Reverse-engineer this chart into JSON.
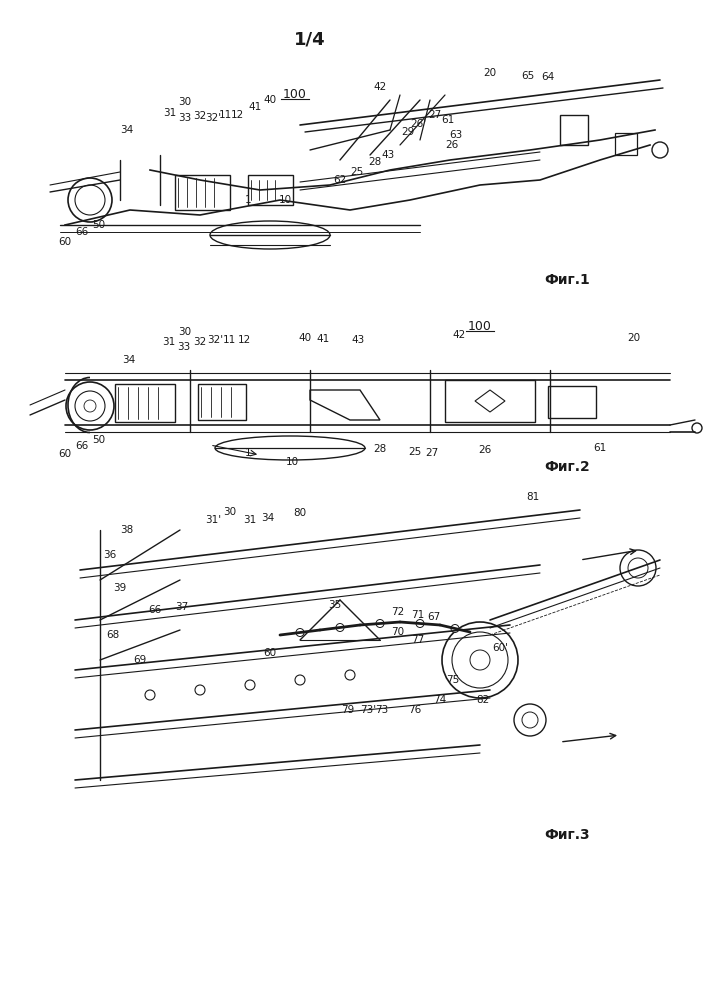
{
  "page_label": "1/4",
  "fig1_label": "Фиг.1",
  "fig2_label": "Фиг.2",
  "fig3_label": "Фиг.3",
  "bg_color": "#ffffff",
  "line_color": "#1a1a1a",
  "text_color": "#1a1a1a",
  "fig1_ref": "100",
  "fig2_ref": "100"
}
